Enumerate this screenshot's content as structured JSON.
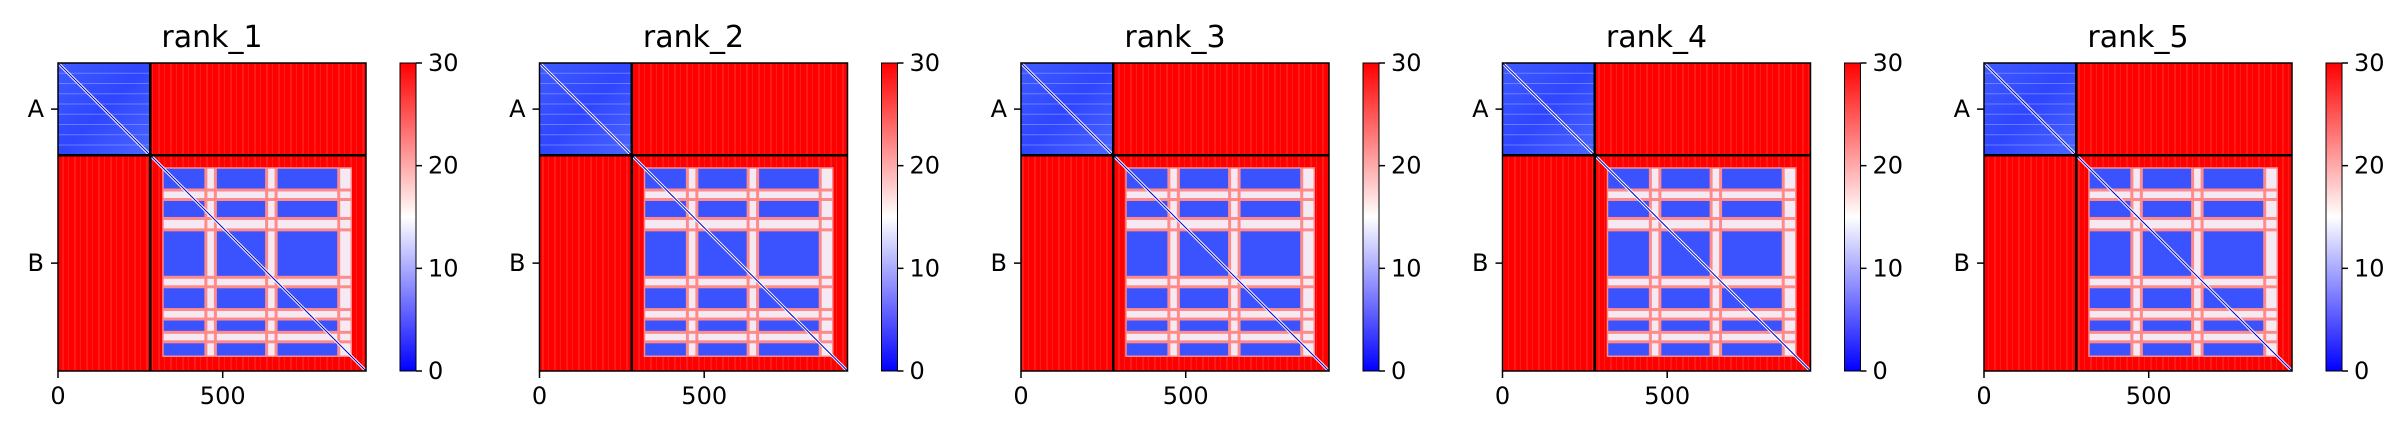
{
  "colors": {
    "low": "#0000ff",
    "mid": "#ffffff",
    "high": "#ff0000",
    "frame": "#000000"
  },
  "colorbar": {
    "ticks": [
      "0",
      "10",
      "20",
      "30"
    ],
    "range": [
      0,
      30
    ]
  },
  "chart_data": [
    {
      "type": "heatmap",
      "title": "rank_1",
      "xlabel": "",
      "ylabel": "",
      "x_ticks": [
        "0",
        "500"
      ],
      "y_ticks": [
        "A",
        "B"
      ],
      "xlim": [
        0,
        935
      ],
      "ylim": [
        935,
        0
      ],
      "chains": [
        {
          "name": "A",
          "start": 0,
          "end": 280
        },
        {
          "name": "B",
          "start": 280,
          "end": 935
        }
      ],
      "value_range": [
        0,
        30
      ],
      "colormap": "bwr"
    },
    {
      "type": "heatmap",
      "title": "rank_2",
      "xlabel": "",
      "ylabel": "",
      "x_ticks": [
        "0",
        "500"
      ],
      "y_ticks": [
        "A",
        "B"
      ],
      "xlim": [
        0,
        935
      ],
      "ylim": [
        935,
        0
      ],
      "chains": [
        {
          "name": "A",
          "start": 0,
          "end": 280
        },
        {
          "name": "B",
          "start": 280,
          "end": 935
        }
      ],
      "value_range": [
        0,
        30
      ],
      "colormap": "bwr"
    },
    {
      "type": "heatmap",
      "title": "rank_3",
      "xlabel": "",
      "ylabel": "",
      "x_ticks": [
        "0",
        "500"
      ],
      "y_ticks": [
        "A",
        "B"
      ],
      "xlim": [
        0,
        935
      ],
      "ylim": [
        935,
        0
      ],
      "chains": [
        {
          "name": "A",
          "start": 0,
          "end": 280
        },
        {
          "name": "B",
          "start": 280,
          "end": 935
        }
      ],
      "value_range": [
        0,
        30
      ],
      "colormap": "bwr"
    },
    {
      "type": "heatmap",
      "title": "rank_4",
      "xlabel": "",
      "ylabel": "",
      "x_ticks": [
        "0",
        "500"
      ],
      "y_ticks": [
        "A",
        "B"
      ],
      "xlim": [
        0,
        935
      ],
      "ylim": [
        935,
        0
      ],
      "chains": [
        {
          "name": "A",
          "start": 0,
          "end": 280
        },
        {
          "name": "B",
          "start": 280,
          "end": 935
        }
      ],
      "value_range": [
        0,
        30
      ],
      "colormap": "bwr"
    },
    {
      "type": "heatmap",
      "title": "rank_5",
      "xlabel": "",
      "ylabel": "",
      "x_ticks": [
        "0",
        "500"
      ],
      "y_ticks": [
        "A",
        "B"
      ],
      "xlim": [
        0,
        935
      ],
      "ylim": [
        935,
        0
      ],
      "chains": [
        {
          "name": "A",
          "start": 0,
          "end": 280
        },
        {
          "name": "B",
          "start": 280,
          "end": 935
        }
      ],
      "value_range": [
        0,
        30
      ],
      "colormap": "bwr"
    }
  ]
}
